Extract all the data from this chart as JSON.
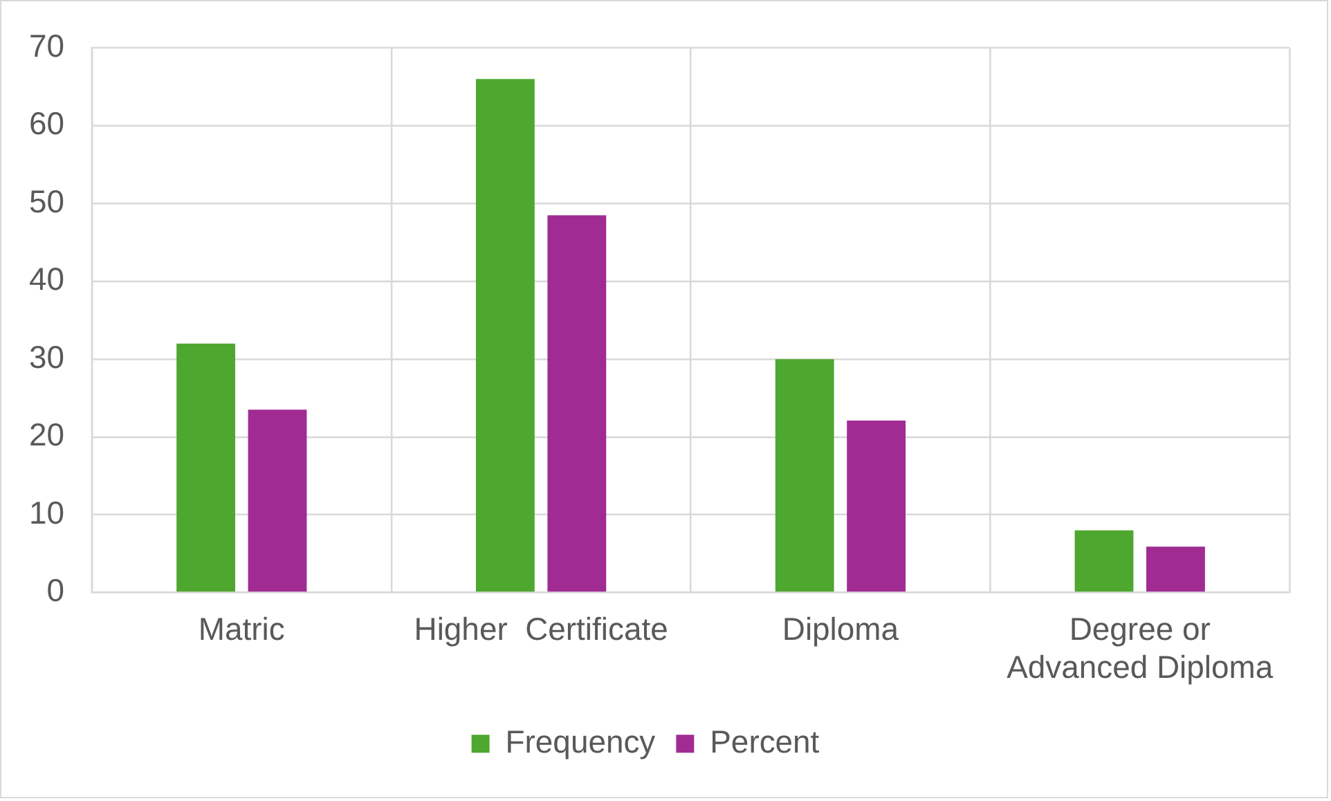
{
  "chart_data": {
    "type": "bar",
    "categories": [
      "Matric",
      "Higher  Certificate",
      "Diploma",
      "Degree or Advanced Diploma"
    ],
    "series": [
      {
        "name": "Frequency",
        "color": "#4ea72e",
        "values": [
          32,
          66,
          30,
          8
        ]
      },
      {
        "name": "Percent",
        "color": "#a02b93",
        "values": [
          23.5,
          48.5,
          22.1,
          5.9
        ]
      }
    ],
    "ylim": [
      0,
      70
    ],
    "yticks": [
      0,
      10,
      20,
      30,
      40,
      50,
      60,
      70
    ],
    "grid": true,
    "legend": "bottom"
  }
}
